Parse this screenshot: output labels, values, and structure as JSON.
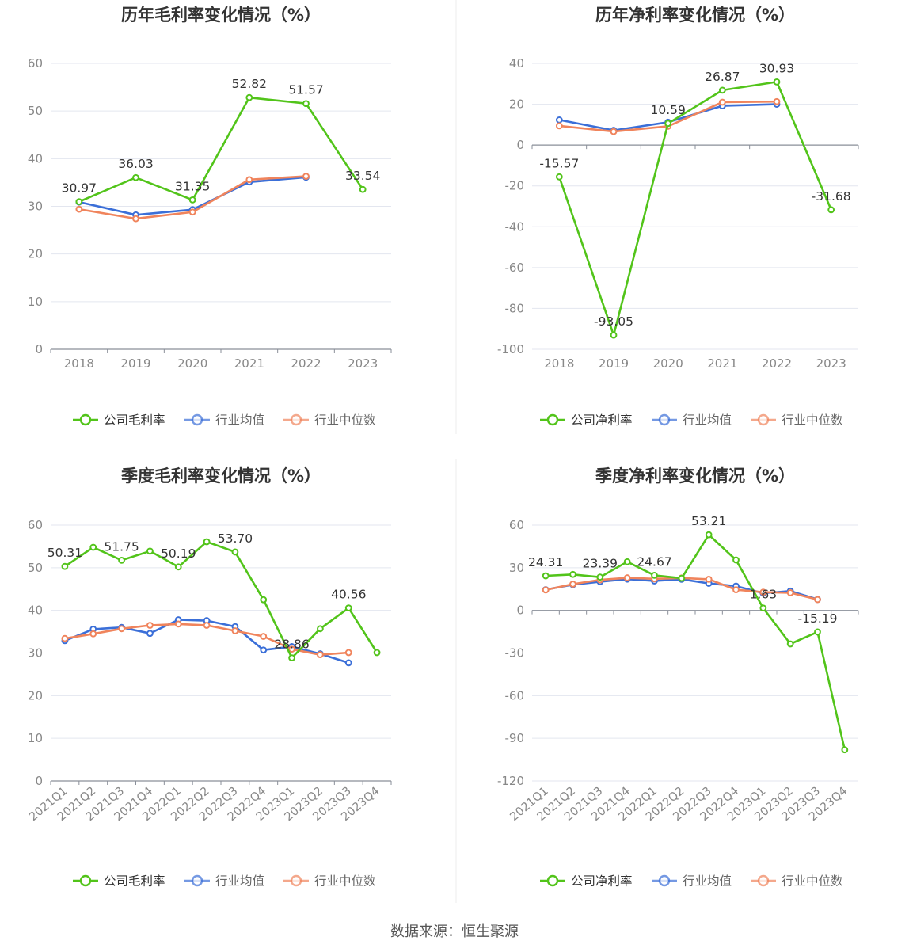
{
  "source_text": "数据来源：恒生聚源",
  "colors": {
    "company": "#52c41a",
    "avg": "#3b6fd8",
    "median": "#f0845c",
    "grid": "#e3e6ef",
    "axis": "#8a8f99",
    "text": "#333333"
  },
  "chart_data": [
    {
      "type": "line",
      "title": "历年毛利率变化情况（%）",
      "categories": [
        "2018",
        "2019",
        "2020",
        "2021",
        "2022",
        "2023"
      ],
      "ylim": [
        0,
        60
      ],
      "yticks": [
        0,
        10,
        20,
        30,
        40,
        50,
        60
      ],
      "grid": true,
      "legend_position": "bottom",
      "series": [
        {
          "name": "公司毛利率",
          "role": "company",
          "values": [
            30.97,
            36.03,
            31.35,
            52.82,
            51.57,
            33.54
          ],
          "labels": [
            "30.97",
            "36.03",
            "31.35",
            "52.82",
            "51.57",
            "33.54"
          ]
        },
        {
          "name": "行业均值",
          "role": "avg",
          "values": [
            30.9,
            28.2,
            29.3,
            35.1,
            36.1,
            null
          ]
        },
        {
          "name": "行业中位数",
          "role": "median",
          "values": [
            29.4,
            27.4,
            28.8,
            35.6,
            36.3,
            null
          ]
        }
      ]
    },
    {
      "type": "line",
      "title": "历年净利率变化情况（%）",
      "categories": [
        "2018",
        "2019",
        "2020",
        "2021",
        "2022",
        "2023"
      ],
      "ylim": [
        -100,
        40
      ],
      "yticks": [
        -100,
        -80,
        -60,
        -40,
        -20,
        0,
        20,
        40
      ],
      "grid": true,
      "legend_position": "bottom",
      "series": [
        {
          "name": "公司净利率",
          "role": "company",
          "values": [
            -15.57,
            -93.05,
            10.59,
            26.87,
            30.93,
            -31.68
          ],
          "labels": [
            "-15.57",
            "-93.05",
            "10.59",
            "26.87",
            "30.93",
            "-31.68"
          ]
        },
        {
          "name": "行业均值",
          "role": "avg",
          "values": [
            12.3,
            7.2,
            11.2,
            19.2,
            20.0,
            null
          ]
        },
        {
          "name": "行业中位数",
          "role": "median",
          "values": [
            9.4,
            6.6,
            9.2,
            21.0,
            21.3,
            null
          ]
        }
      ]
    },
    {
      "type": "line",
      "title": "季度毛利率变化情况（%）",
      "categories": [
        "2021Q1",
        "2021Q2",
        "2021Q3",
        "2021Q4",
        "2022Q1",
        "2022Q2",
        "2022Q3",
        "2022Q4",
        "2023Q1",
        "2023Q2",
        "2023Q3",
        "2023Q4"
      ],
      "ylim": [
        0,
        60
      ],
      "yticks": [
        0,
        10,
        20,
        30,
        40,
        50,
        60
      ],
      "grid": true,
      "legend_position": "bottom",
      "series": [
        {
          "name": "公司毛利率",
          "role": "company",
          "values": [
            50.31,
            54.8,
            51.75,
            53.9,
            50.19,
            56.1,
            53.7,
            42.5,
            28.86,
            35.7,
            40.56,
            30.1
          ],
          "labels": [
            "50.31",
            "",
            "51.75",
            "",
            "50.19",
            "",
            "53.70",
            "",
            "28.86",
            "",
            "40.56",
            ""
          ]
        },
        {
          "name": "行业均值",
          "role": "avg",
          "values": [
            32.9,
            35.6,
            36.0,
            34.6,
            37.8,
            37.6,
            36.2,
            30.7,
            31.5,
            29.8,
            27.7,
            null
          ]
        },
        {
          "name": "行业中位数",
          "role": "median",
          "values": [
            33.4,
            34.5,
            35.7,
            36.5,
            36.8,
            36.5,
            35.2,
            33.9,
            30.9,
            29.6,
            30.1,
            null
          ]
        }
      ]
    },
    {
      "type": "line",
      "title": "季度净利率变化情况（%）",
      "categories": [
        "2021Q1",
        "2021Q2",
        "2021Q3",
        "2021Q4",
        "2022Q1",
        "2022Q2",
        "2022Q3",
        "2022Q4",
        "2023Q1",
        "2023Q2",
        "2023Q3",
        "2023Q4"
      ],
      "ylim": [
        -120,
        60
      ],
      "yticks": [
        -120,
        -90,
        -60,
        -30,
        0,
        30,
        60
      ],
      "grid": true,
      "legend_position": "bottom",
      "series": [
        {
          "name": "公司净利率",
          "role": "company",
          "values": [
            24.31,
            25.3,
            23.39,
            34.2,
            24.67,
            22.6,
            53.21,
            35.5,
            1.63,
            -23.6,
            -15.19,
            -98.1
          ],
          "labels": [
            "24.31",
            "",
            "23.39",
            "",
            "24.67",
            "",
            "53.21",
            "",
            "1.63",
            "",
            "-15.19",
            ""
          ]
        },
        {
          "name": "行业均值",
          "role": "avg",
          "values": [
            14.6,
            18.1,
            20.2,
            22.0,
            20.7,
            21.9,
            19.0,
            17.1,
            12.1,
            13.6,
            7.7,
            null
          ]
        },
        {
          "name": "行业中位数",
          "role": "median",
          "values": [
            14.4,
            18.5,
            21.5,
            22.9,
            22.2,
            22.8,
            21.9,
            14.5,
            12.8,
            12.4,
            7.6,
            null
          ]
        }
      ]
    }
  ]
}
